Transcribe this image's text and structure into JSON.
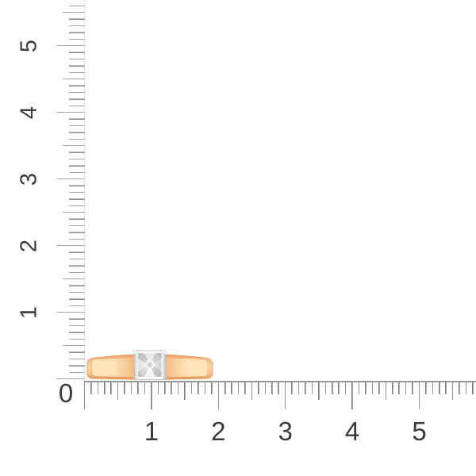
{
  "ruler": {
    "horizontal": {
      "origin_label": "0",
      "labels": [
        "1",
        "2",
        "3",
        "4",
        "5"
      ],
      "visible_range_cm": [
        0,
        5.8
      ]
    },
    "vertical": {
      "labels": [
        "1",
        "2",
        "3",
        "4",
        "5"
      ],
      "visible_range_cm": [
        0,
        5.6
      ]
    }
  },
  "ring": {
    "width_cm": 1.9,
    "band_height_cm": 0.37
  },
  "colors": {
    "band_edge": "#e29158",
    "band_dark": "#eca269",
    "band_mid": "#f5bc84",
    "band_light": "#fbd5a4",
    "band_cream": "#fde5ba",
    "frame_white": "#fafafa",
    "frame_edge": "#c2c2c2",
    "gem_white": "#ffffff",
    "gem_light": "#ececec",
    "gem_mid": "#d4d4d4",
    "gem_dark": "#bdbdbd",
    "gem_deep": "#a3a3a3",
    "tick_dark": "#7e7e7e",
    "tick_light": "#c9c9c9",
    "axis_faint": "#e9e9e9",
    "baseline": "#979797",
    "label_text": "#3a3a3a"
  }
}
